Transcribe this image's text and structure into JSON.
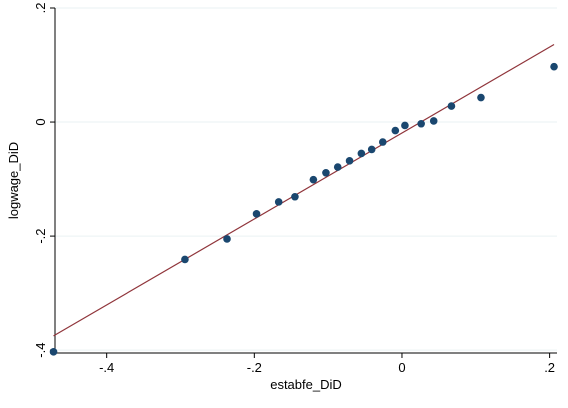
{
  "chart_data": {
    "type": "scatter",
    "xlabel": "estabfe_DiD",
    "ylabel": "logwage_DiD",
    "xlim": [
      -0.47,
      0.21
    ],
    "ylim": [
      -0.405,
      0.2
    ],
    "x_ticks": [
      -0.4,
      -0.2,
      0,
      0.2
    ],
    "x_tick_labels": [
      "-.4",
      "-.2",
      "0",
      ".2"
    ],
    "y_ticks": [
      -0.4,
      -0.2,
      0,
      0.2
    ],
    "y_tick_labels": [
      "-.4",
      "-.2",
      "0",
      ".2"
    ],
    "grid": "horizontal",
    "legend": "none",
    "series": [
      {
        "type": "scatter",
        "color": "#1a476f",
        "points": [
          [
            -0.472,
            -0.403
          ],
          [
            -0.294,
            -0.241
          ],
          [
            -0.237,
            -0.205
          ],
          [
            -0.197,
            -0.161
          ],
          [
            -0.167,
            -0.14
          ],
          [
            -0.145,
            -0.131
          ],
          [
            -0.12,
            -0.101
          ],
          [
            -0.103,
            -0.089
          ],
          [
            -0.087,
            -0.079
          ],
          [
            -0.071,
            -0.068
          ],
          [
            -0.055,
            -0.055
          ],
          [
            -0.041,
            -0.048
          ],
          [
            -0.026,
            -0.035
          ],
          [
            -0.009,
            -0.015
          ],
          [
            0.004,
            -0.006
          ],
          [
            0.026,
            -0.003
          ],
          [
            0.043,
            0.002
          ],
          [
            0.067,
            0.028
          ],
          [
            0.107,
            0.043
          ],
          [
            0.206,
            0.097
          ]
        ]
      },
      {
        "type": "line",
        "color": "#90353b",
        "points": [
          [
            -0.472,
            -0.375
          ],
          [
            0.206,
            0.136
          ]
        ]
      }
    ]
  }
}
